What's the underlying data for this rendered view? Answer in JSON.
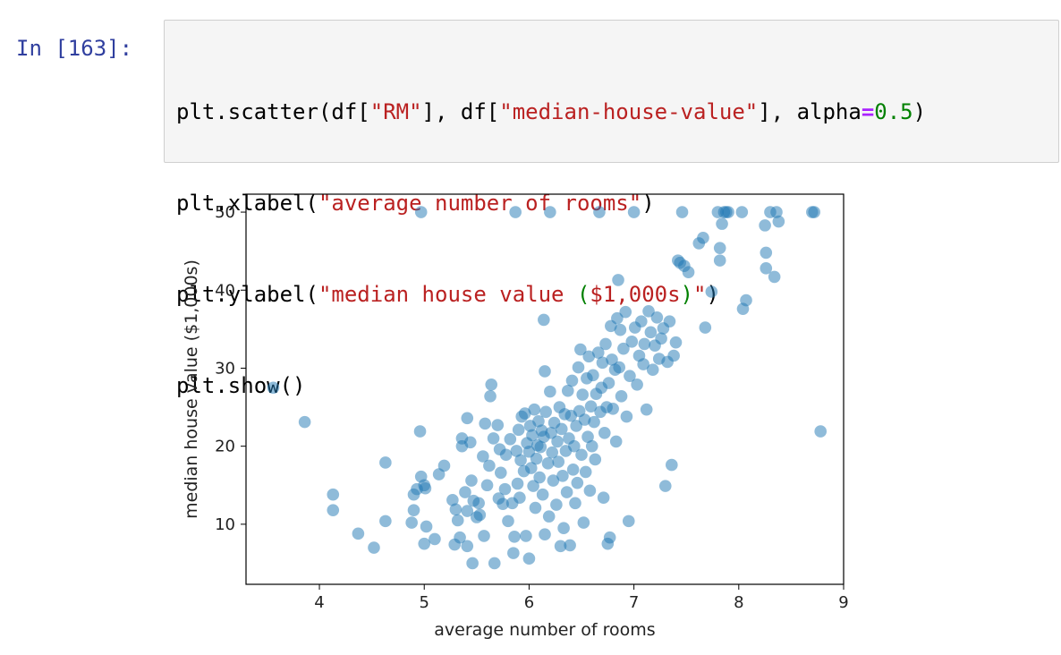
{
  "cell": {
    "prompt": "In [163]:",
    "code": {
      "line1": {
        "a": "plt.scatter(df[",
        "b": "\"RM\"",
        "c": "], df[",
        "d": "\"median-house-value\"",
        "e": "], alpha",
        "f": "=",
        "g": "0.5",
        "h": ")"
      },
      "line2": {
        "a": "plt.xlabel(",
        "b": "\"average number of rooms\"",
        "c": ")"
      },
      "line3": {
        "a": "plt.ylabel(",
        "b": "\"median house value ",
        "c": "(",
        "d": "$1,000s",
        "e": ")",
        "f": "\"",
        "g": ")"
      },
      "line4": {
        "a": "plt.show()"
      }
    }
  },
  "colors": {
    "point": "#1f77b4",
    "string": "#ba2121",
    "number": "#008000",
    "operator": "#aa22ff",
    "prompt": "#303f9f"
  },
  "chart_data": {
    "type": "scatter",
    "xlabel": "average number of rooms",
    "ylabel": "median house value ($1,000s)",
    "xlim": [
      3.3,
      9.0
    ],
    "ylim": [
      2.3,
      52.3
    ],
    "xticks": [
      4,
      5,
      6,
      7,
      8,
      9
    ],
    "yticks": [
      10,
      20,
      30,
      40,
      50
    ],
    "alpha": 0.5,
    "points": [
      [
        3.56,
        27.5
      ],
      [
        3.86,
        23.1
      ],
      [
        4.13,
        13.8
      ],
      [
        4.13,
        11.8
      ],
      [
        4.37,
        8.8
      ],
      [
        4.52,
        7.0
      ],
      [
        4.63,
        10.4
      ],
      [
        4.63,
        17.9
      ],
      [
        4.88,
        10.2
      ],
      [
        4.9,
        11.8
      ],
      [
        4.9,
        13.8
      ],
      [
        4.93,
        14.5
      ],
      [
        4.96,
        21.9
      ],
      [
        4.97,
        50.0
      ],
      [
        4.97,
        16.1
      ],
      [
        5.0,
        7.5
      ],
      [
        5.0,
        15.0
      ],
      [
        5.01,
        14.6
      ],
      [
        5.02,
        9.7
      ],
      [
        5.1,
        8.1
      ],
      [
        5.14,
        16.4
      ],
      [
        5.19,
        17.5
      ],
      [
        5.27,
        13.1
      ],
      [
        5.29,
        7.4
      ],
      [
        5.3,
        11.9
      ],
      [
        5.32,
        10.5
      ],
      [
        5.34,
        8.3
      ],
      [
        5.36,
        20.0
      ],
      [
        5.36,
        21.0
      ],
      [
        5.39,
        14.1
      ],
      [
        5.41,
        11.7
      ],
      [
        5.41,
        7.2
      ],
      [
        5.41,
        23.6
      ],
      [
        5.44,
        20.5
      ],
      [
        5.45,
        15.6
      ],
      [
        5.46,
        5.0
      ],
      [
        5.47,
        13.0
      ],
      [
        5.5,
        10.9
      ],
      [
        5.52,
        12.7
      ],
      [
        5.53,
        11.2
      ],
      [
        5.56,
        18.7
      ],
      [
        5.57,
        8.5
      ],
      [
        5.58,
        22.9
      ],
      [
        5.6,
        15.0
      ],
      [
        5.62,
        17.5
      ],
      [
        5.63,
        26.4
      ],
      [
        5.64,
        27.9
      ],
      [
        5.66,
        21.0
      ],
      [
        5.67,
        5.0
      ],
      [
        5.7,
        22.7
      ],
      [
        5.71,
        13.3
      ],
      [
        5.72,
        19.6
      ],
      [
        5.73,
        16.6
      ],
      [
        5.75,
        12.6
      ],
      [
        5.77,
        14.5
      ],
      [
        5.78,
        18.9
      ],
      [
        5.8,
        10.4
      ],
      [
        5.82,
        20.9
      ],
      [
        5.84,
        12.7
      ],
      [
        5.85,
        6.3
      ],
      [
        5.86,
        8.4
      ],
      [
        5.87,
        50.0
      ],
      [
        5.88,
        19.4
      ],
      [
        5.89,
        15.2
      ],
      [
        5.9,
        22.1
      ],
      [
        5.91,
        13.4
      ],
      [
        5.92,
        18.2
      ],
      [
        5.93,
        23.8
      ],
      [
        5.95,
        16.8
      ],
      [
        5.96,
        24.2
      ],
      [
        5.97,
        8.5
      ],
      [
        5.98,
        20.4
      ],
      [
        6.0,
        5.6
      ],
      [
        6.0,
        19.3
      ],
      [
        6.01,
        22.6
      ],
      [
        6.02,
        17.2
      ],
      [
        6.03,
        21.4
      ],
      [
        6.04,
        14.9
      ],
      [
        6.05,
        24.7
      ],
      [
        6.06,
        12.1
      ],
      [
        6.07,
        18.4
      ],
      [
        6.08,
        20.1
      ],
      [
        6.09,
        23.2
      ],
      [
        6.1,
        16.0
      ],
      [
        6.11,
        19.9
      ],
      [
        6.12,
        22.0
      ],
      [
        6.13,
        13.8
      ],
      [
        6.14,
        21.2
      ],
      [
        6.14,
        36.2
      ],
      [
        6.15,
        29.6
      ],
      [
        6.15,
        8.7
      ],
      [
        6.16,
        24.4
      ],
      [
        6.18,
        17.8
      ],
      [
        6.19,
        11.0
      ],
      [
        6.2,
        50.0
      ],
      [
        6.2,
        27.0
      ],
      [
        6.21,
        21.7
      ],
      [
        6.22,
        19.2
      ],
      [
        6.23,
        15.6
      ],
      [
        6.24,
        23.0
      ],
      [
        6.26,
        12.5
      ],
      [
        6.27,
        20.6
      ],
      [
        6.28,
        18.0
      ],
      [
        6.29,
        25.0
      ],
      [
        6.3,
        7.2
      ],
      [
        6.31,
        22.2
      ],
      [
        6.32,
        16.2
      ],
      [
        6.33,
        9.5
      ],
      [
        6.34,
        24.1
      ],
      [
        6.35,
        19.4
      ],
      [
        6.36,
        14.1
      ],
      [
        6.37,
        27.1
      ],
      [
        6.38,
        21.0
      ],
      [
        6.39,
        7.3
      ],
      [
        6.4,
        23.9
      ],
      [
        6.41,
        28.4
      ],
      [
        6.42,
        17.0
      ],
      [
        6.43,
        20.0
      ],
      [
        6.44,
        12.7
      ],
      [
        6.45,
        22.6
      ],
      [
        6.46,
        15.3
      ],
      [
        6.47,
        30.1
      ],
      [
        6.48,
        24.5
      ],
      [
        6.49,
        32.4
      ],
      [
        6.5,
        18.9
      ],
      [
        6.51,
        26.6
      ],
      [
        6.52,
        10.2
      ],
      [
        6.53,
        23.4
      ],
      [
        6.54,
        16.7
      ],
      [
        6.55,
        28.7
      ],
      [
        6.56,
        21.2
      ],
      [
        6.57,
        31.5
      ],
      [
        6.58,
        14.3
      ],
      [
        6.59,
        25.1
      ],
      [
        6.6,
        20.0
      ],
      [
        6.61,
        29.1
      ],
      [
        6.62,
        23.1
      ],
      [
        6.63,
        18.3
      ],
      [
        6.64,
        26.7
      ],
      [
        6.66,
        32.0
      ],
      [
        6.67,
        50.0
      ],
      [
        6.68,
        24.4
      ],
      [
        6.69,
        27.5
      ],
      [
        6.7,
        30.7
      ],
      [
        6.71,
        13.4
      ],
      [
        6.72,
        21.7
      ],
      [
        6.73,
        33.1
      ],
      [
        6.74,
        25.0
      ],
      [
        6.75,
        7.5
      ],
      [
        6.76,
        28.1
      ],
      [
        6.77,
        8.3
      ],
      [
        6.78,
        35.4
      ],
      [
        6.79,
        31.1
      ],
      [
        6.8,
        24.8
      ],
      [
        6.82,
        29.8
      ],
      [
        6.83,
        20.6
      ],
      [
        6.84,
        36.4
      ],
      [
        6.85,
        41.3
      ],
      [
        6.86,
        30.1
      ],
      [
        6.87,
        34.9
      ],
      [
        6.88,
        26.4
      ],
      [
        6.9,
        32.5
      ],
      [
        6.92,
        37.2
      ],
      [
        6.93,
        23.8
      ],
      [
        6.95,
        10.4
      ],
      [
        6.96,
        29.0
      ],
      [
        6.98,
        33.4
      ],
      [
        7.0,
        50.0
      ],
      [
        7.01,
        35.2
      ],
      [
        7.03,
        27.9
      ],
      [
        7.05,
        31.6
      ],
      [
        7.07,
        36.0
      ],
      [
        7.09,
        30.5
      ],
      [
        7.1,
        33.1
      ],
      [
        7.12,
        24.7
      ],
      [
        7.14,
        37.3
      ],
      [
        7.16,
        34.6
      ],
      [
        7.18,
        29.8
      ],
      [
        7.2,
        32.9
      ],
      [
        7.22,
        36.5
      ],
      [
        7.24,
        31.2
      ],
      [
        7.26,
        33.8
      ],
      [
        7.28,
        35.1
      ],
      [
        7.3,
        14.9
      ],
      [
        7.32,
        30.8
      ],
      [
        7.34,
        36.0
      ],
      [
        7.36,
        17.6
      ],
      [
        7.38,
        31.6
      ],
      [
        7.4,
        33.3
      ],
      [
        7.42,
        43.8
      ],
      [
        7.44,
        43.5
      ],
      [
        7.46,
        50.0
      ],
      [
        7.48,
        43.1
      ],
      [
        7.52,
        42.3
      ],
      [
        7.62,
        46.0
      ],
      [
        7.66,
        46.7
      ],
      [
        7.68,
        35.2
      ],
      [
        7.74,
        39.8
      ],
      [
        7.8,
        50.0
      ],
      [
        7.82,
        45.4
      ],
      [
        7.82,
        43.8
      ],
      [
        7.84,
        48.5
      ],
      [
        7.86,
        50.0
      ],
      [
        7.88,
        50.0
      ],
      [
        7.9,
        50.0
      ],
      [
        8.03,
        50.0
      ],
      [
        8.04,
        37.6
      ],
      [
        8.07,
        38.7
      ],
      [
        8.25,
        48.3
      ],
      [
        8.26,
        44.8
      ],
      [
        8.26,
        42.8
      ],
      [
        8.3,
        50.0
      ],
      [
        8.34,
        41.7
      ],
      [
        8.36,
        50.0
      ],
      [
        8.38,
        48.8
      ],
      [
        8.7,
        50.0
      ],
      [
        8.72,
        50.0
      ],
      [
        8.78,
        21.9
      ]
    ]
  }
}
